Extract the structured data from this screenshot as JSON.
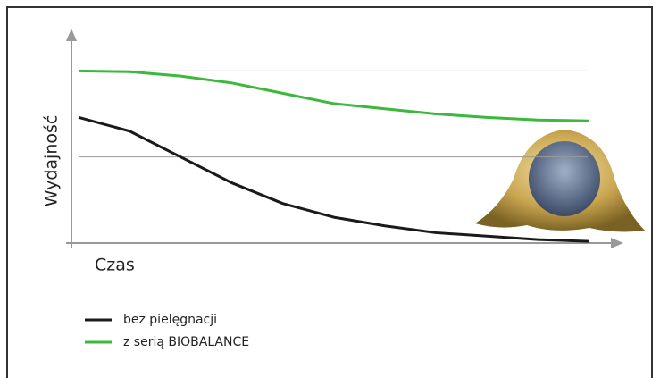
{
  "chart_data": {
    "type": "line",
    "y_label": "Wydajność",
    "x_label": "Czas",
    "x": [
      0,
      1,
      2,
      3,
      4,
      5,
      6,
      7,
      8,
      9,
      10
    ],
    "xlim": [
      0,
      10.5
    ],
    "ylim": [
      0,
      123
    ],
    "gridlines": [
      50,
      100
    ],
    "series": [
      {
        "name": "bez pielęgnacji",
        "color": "#1a1a1a",
        "values": [
          73,
          65,
          50,
          35,
          23,
          15,
          10,
          6,
          4,
          2,
          1
        ]
      },
      {
        "name": "z serią BIOBALANCE",
        "color": "#3cb83c",
        "values": [
          100,
          99.5,
          97,
          93,
          87,
          81,
          78,
          75,
          73,
          71.5,
          71
        ]
      }
    ]
  }
}
